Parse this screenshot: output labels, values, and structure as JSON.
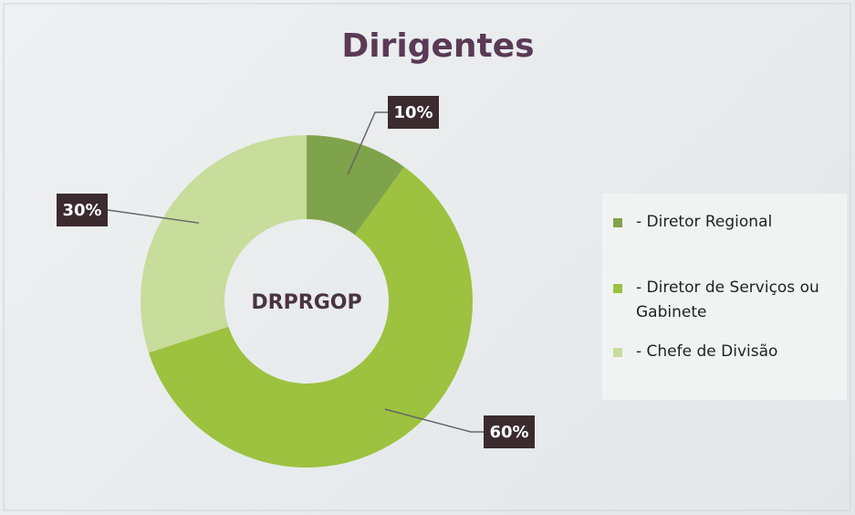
{
  "chart_data": {
    "type": "donut",
    "title": "Dirigentes",
    "center_label": "DRPRGOP",
    "categories": [
      "- Diretor Regional",
      "- Diretor de Serviços ou Gabinete",
      "- Chefe de Divisão"
    ],
    "values": [
      10,
      60,
      30
    ],
    "value_labels": [
      "10%",
      "60%",
      "30%"
    ],
    "colors": [
      "#7fa34a",
      "#9cc23f",
      "#c8dc9b"
    ],
    "legend": "right"
  }
}
